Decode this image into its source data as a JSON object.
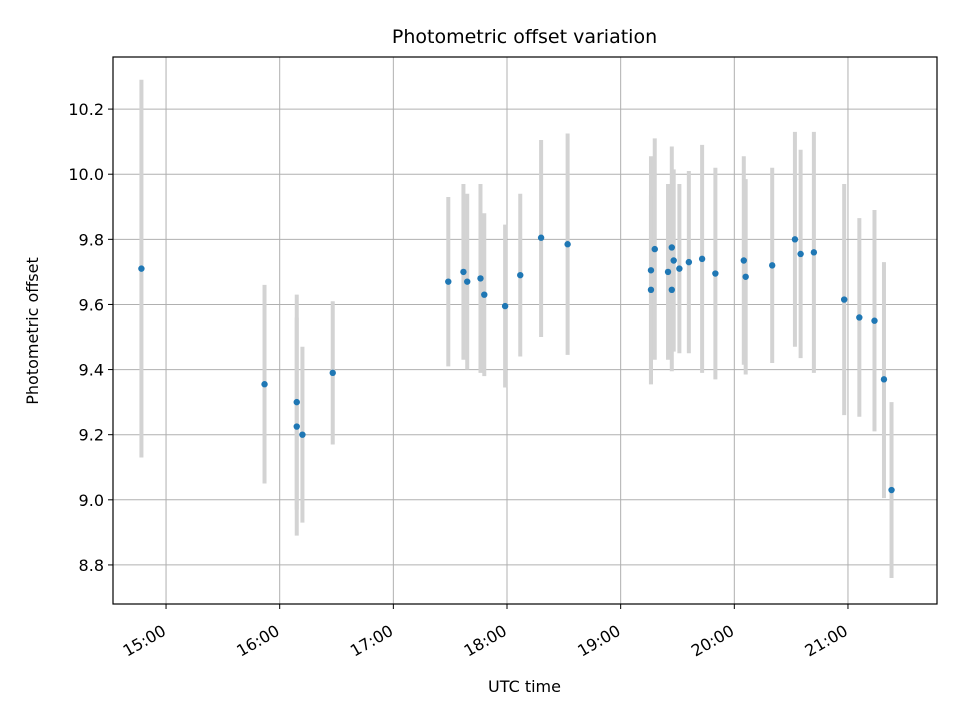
{
  "chart_data": {
    "type": "scatter",
    "title": "Photometric offset variation",
    "xlabel": "UTC time",
    "ylabel": "Photometric offset",
    "x_tick_labels": [
      "15:00",
      "16:00",
      "17:00",
      "18:00",
      "19:00",
      "20:00",
      "21:00"
    ],
    "y_tick_labels": [
      "8.8",
      "9.0",
      "9.2",
      "9.4",
      "9.6",
      "9.8",
      "10.0",
      "10.2"
    ],
    "y_ticks": [
      8.8,
      9.0,
      9.2,
      9.4,
      9.6,
      9.8,
      10.0,
      10.2
    ],
    "x_ticks": [
      "15:00",
      "16:00",
      "17:00",
      "18:00",
      "19:00",
      "20:00",
      "21:00"
    ],
    "xlim": [
      "14:32",
      "21:47"
    ],
    "ylim": [
      8.68,
      10.36
    ],
    "grid": true,
    "point_color": "#1f77b4",
    "errorbar_color": "#d3d3d3",
    "points": [
      {
        "x": "14:47",
        "y": 9.71,
        "ylow": 9.13,
        "yhigh": 10.29
      },
      {
        "x": "15:52",
        "y": 9.355,
        "ylow": 9.05,
        "yhigh": 9.66
      },
      {
        "x": "16:09",
        "y": 9.3,
        "ylow": 8.97,
        "yhigh": 9.63
      },
      {
        "x": "16:09",
        "y": 9.225,
        "ylow": 8.89,
        "yhigh": 9.56
      },
      {
        "x": "16:12",
        "y": 9.2,
        "ylow": 8.93,
        "yhigh": 9.47
      },
      {
        "x": "16:28",
        "y": 9.39,
        "ylow": 9.17,
        "yhigh": 9.61
      },
      {
        "x": "17:29",
        "y": 9.67,
        "ylow": 9.41,
        "yhigh": 9.93
      },
      {
        "x": "17:37",
        "y": 9.7,
        "ylow": 9.43,
        "yhigh": 9.97
      },
      {
        "x": "17:39",
        "y": 9.67,
        "ylow": 9.4,
        "yhigh": 9.94
      },
      {
        "x": "17:46",
        "y": 9.68,
        "ylow": 9.39,
        "yhigh": 9.97
      },
      {
        "x": "17:48",
        "y": 9.63,
        "ylow": 9.38,
        "yhigh": 9.88
      },
      {
        "x": "17:59",
        "y": 9.595,
        "ylow": 9.345,
        "yhigh": 9.845
      },
      {
        "x": "18:07",
        "y": 9.69,
        "ylow": 9.44,
        "yhigh": 9.94
      },
      {
        "x": "18:18",
        "y": 9.805,
        "ylow": 9.5,
        "yhigh": 10.105
      },
      {
        "x": "18:32",
        "y": 9.785,
        "ylow": 9.445,
        "yhigh": 10.125
      },
      {
        "x": "19:16",
        "y": 9.645,
        "ylow": 9.355,
        "yhigh": 9.935
      },
      {
        "x": "19:16",
        "y": 9.705,
        "ylow": 9.355,
        "yhigh": 10.055
      },
      {
        "x": "19:18",
        "y": 9.77,
        "ylow": 9.43,
        "yhigh": 10.11
      },
      {
        "x": "19:25",
        "y": 9.7,
        "ylow": 9.43,
        "yhigh": 9.97
      },
      {
        "x": "19:27",
        "y": 9.775,
        "ylow": 9.465,
        "yhigh": 10.085
      },
      {
        "x": "19:27",
        "y": 9.645,
        "ylow": 9.395,
        "yhigh": 9.895
      },
      {
        "x": "19:28",
        "y": 9.735,
        "ylow": 9.455,
        "yhigh": 10.015
      },
      {
        "x": "19:31",
        "y": 9.71,
        "ylow": 9.45,
        "yhigh": 9.97
      },
      {
        "x": "19:36",
        "y": 9.73,
        "ylow": 9.45,
        "yhigh": 10.01
      },
      {
        "x": "19:43",
        "y": 9.74,
        "ylow": 9.39,
        "yhigh": 10.09
      },
      {
        "x": "19:50",
        "y": 9.695,
        "ylow": 9.37,
        "yhigh": 10.02
      },
      {
        "x": "20:05",
        "y": 9.735,
        "ylow": 9.415,
        "yhigh": 10.055
      },
      {
        "x": "20:06",
        "y": 9.685,
        "ylow": 9.385,
        "yhigh": 9.985
      },
      {
        "x": "20:20",
        "y": 9.72,
        "ylow": 9.42,
        "yhigh": 10.02
      },
      {
        "x": "20:32",
        "y": 9.8,
        "ylow": 9.47,
        "yhigh": 10.13
      },
      {
        "x": "20:35",
        "y": 9.755,
        "ylow": 9.435,
        "yhigh": 10.075
      },
      {
        "x": "20:42",
        "y": 9.76,
        "ylow": 9.39,
        "yhigh": 10.13
      },
      {
        "x": "20:58",
        "y": 9.615,
        "ylow": 9.26,
        "yhigh": 9.97
      },
      {
        "x": "21:06",
        "y": 9.56,
        "ylow": 9.255,
        "yhigh": 9.865
      },
      {
        "x": "21:14",
        "y": 9.55,
        "ylow": 9.21,
        "yhigh": 9.89
      },
      {
        "x": "21:19",
        "y": 9.37,
        "ylow": 9.005,
        "yhigh": 9.73
      },
      {
        "x": "21:23",
        "y": 9.03,
        "ylow": 8.76,
        "yhigh": 9.3
      }
    ]
  }
}
